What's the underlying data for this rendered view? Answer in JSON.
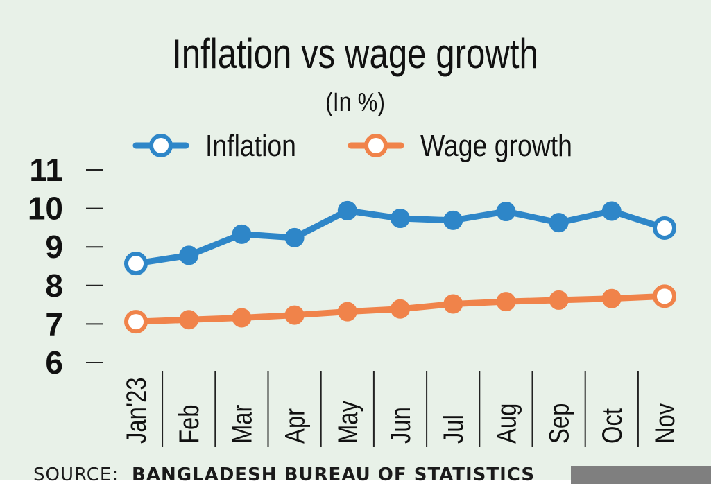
{
  "chart_data": {
    "type": "line",
    "title": "Inflation vs wage growth",
    "subtitle": "(In %)",
    "categories": [
      "Jan'23",
      "Feb",
      "Mar",
      "Apr",
      "May",
      "Jun",
      "Jul",
      "Aug",
      "Sep",
      "Oct",
      "Nov"
    ],
    "series": [
      {
        "name": "Inflation",
        "color": "#2e86c8",
        "values": [
          8.57,
          8.78,
          9.33,
          9.24,
          9.94,
          9.74,
          9.69,
          9.92,
          9.63,
          9.93,
          9.49
        ]
      },
      {
        "name": "Wage growth",
        "color": "#f0834a",
        "values": [
          7.06,
          7.11,
          7.16,
          7.23,
          7.32,
          7.39,
          7.52,
          7.58,
          7.62,
          7.66,
          7.72
        ]
      }
    ],
    "yticks": [
      6,
      7,
      8,
      9,
      10,
      11
    ],
    "ylim": [
      6,
      11
    ],
    "grid": false,
    "legend": "top"
  },
  "footer": {
    "source_prefix": "SOURCE:",
    "source_name": "BANGLADESH BUREAU OF STATISTICS"
  }
}
